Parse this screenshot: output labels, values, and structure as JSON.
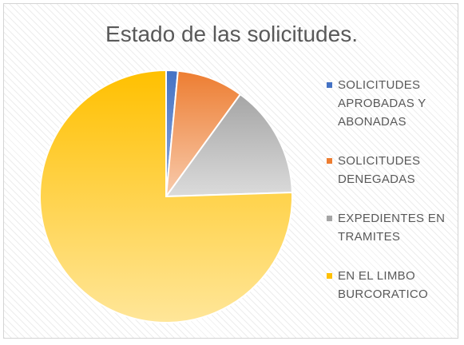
{
  "chart_data": {
    "type": "pie",
    "title": "Estado de las solicitudes.",
    "legend_position": "right",
    "categories": [
      "SOLICITUDES APROBADAS Y ABONADAS",
      "SOLICITUDES DENEGADAS",
      "EXPEDIENTES EN TRAMITES",
      "EN EL LIMBO BURCORATICO"
    ],
    "values": [
      1.5,
      8.5,
      14.5,
      75.5
    ],
    "colors": [
      "#4472C4",
      "#ED7D31",
      "#A5A5A5",
      "#FFC000"
    ],
    "colors_light": [
      "#8FAADC",
      "#F8CBAD",
      "#DBDBDB",
      "#FFE699"
    ]
  }
}
